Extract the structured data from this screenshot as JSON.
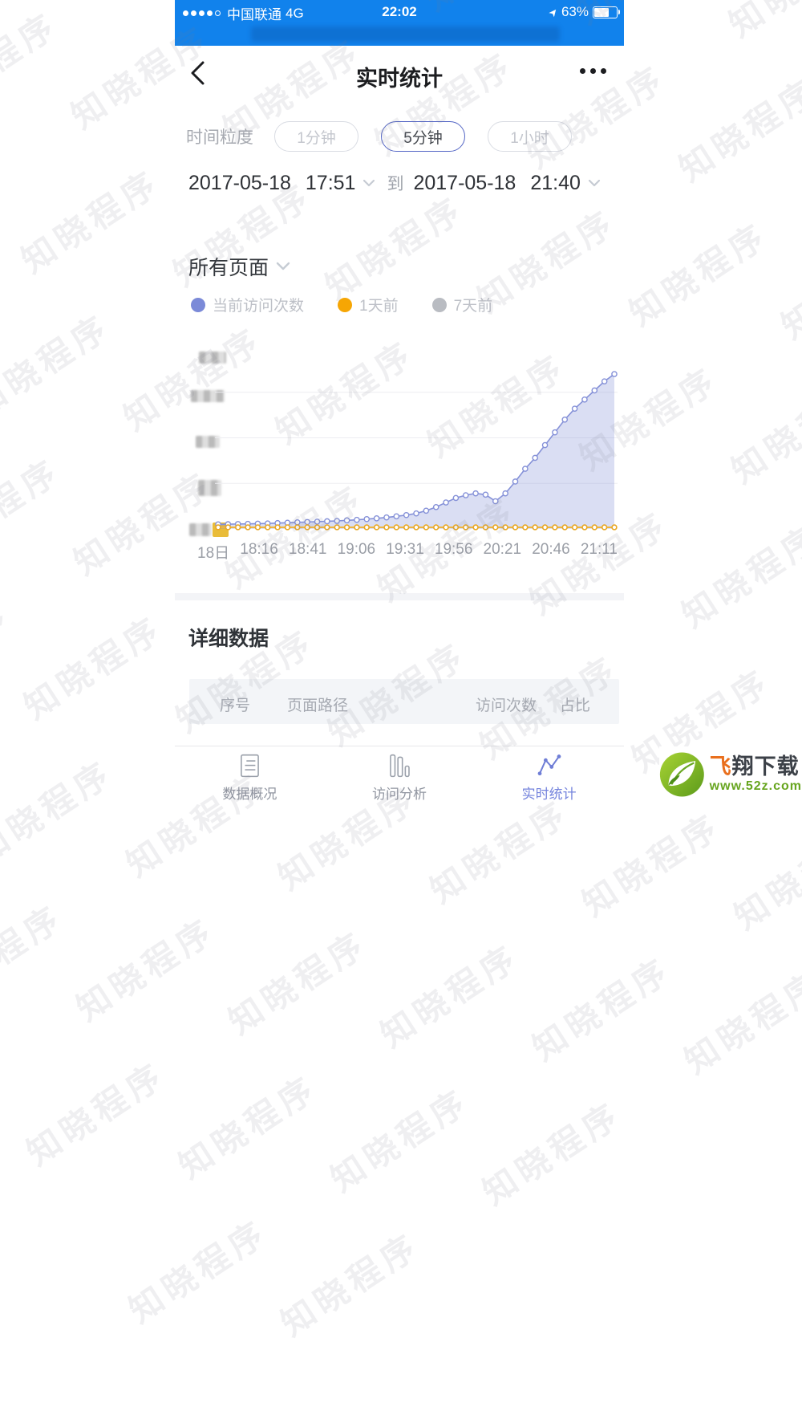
{
  "status_bar": {
    "carrier": "中国联通",
    "network": "4G",
    "time": "22:02",
    "battery_percent": "63%"
  },
  "nav": {
    "title": "实时统计"
  },
  "granularity": {
    "label": "时间粒度",
    "options": [
      {
        "label": "1分钟",
        "selected": false
      },
      {
        "label": "5分钟",
        "selected": true
      },
      {
        "label": "1小时",
        "selected": false
      }
    ]
  },
  "date_range": {
    "start_date": "2017-05-18",
    "start_time": "17:51",
    "to_label": "到",
    "end_date": "2017-05-18",
    "end_time": "21:40"
  },
  "page_filter": {
    "label": "所有页面"
  },
  "legend": [
    {
      "label": "当前访问次数",
      "color": "#7b8ad8"
    },
    {
      "label": "1天前",
      "color": "#f6a604"
    },
    {
      "label": "7天前",
      "color": "#b9bcc2"
    }
  ],
  "chart_data": {
    "type": "line",
    "title": "",
    "x_tick_labels": [
      "18日",
      "18:16",
      "18:41",
      "19:06",
      "19:31",
      "19:56",
      "20:21",
      "20:46",
      "21:11"
    ],
    "y_axis_note": "y-axis tick labels are pixelated/redacted in the screenshot",
    "ylim": [
      0,
      100
    ],
    "gridline_values": [
      25,
      50,
      75
    ],
    "grid": true,
    "legend_position": "top",
    "series": [
      {
        "name": "当前访问次数",
        "color": "#8591d8",
        "fill": "rgba(132,146,216,0.30)",
        "values": [
          2.5,
          2.6,
          2.7,
          2.8,
          2.9,
          3.0,
          3.2,
          3.4,
          3.6,
          3.8,
          4.0,
          4.2,
          4.4,
          4.7,
          5.0,
          5.4,
          5.8,
          6.3,
          6.9,
          7.6,
          8.5,
          10.0,
          12.0,
          14.5,
          17.0,
          18.5,
          19.5,
          18.8,
          15.2,
          19.5,
          26.0,
          33.0,
          39.0,
          46.0,
          53.0,
          60.0,
          66.0,
          71.0,
          76.0,
          81.0,
          85.0
        ]
      },
      {
        "name": "1天前",
        "color": "#edb53f",
        "fill": "none",
        "values": [
          0.9,
          0.9,
          0.9,
          0.9,
          0.9,
          0.9,
          0.9,
          0.9,
          0.9,
          0.9,
          0.9,
          0.9,
          0.9,
          0.9,
          0.9,
          0.9,
          0.9,
          0.9,
          0.9,
          0.9,
          0.9,
          0.9,
          0.9,
          0.9,
          0.9,
          0.9,
          0.9,
          0.9,
          0.9,
          0.9,
          0.9,
          0.9,
          0.9,
          0.9,
          0.9,
          0.9,
          0.9,
          0.9,
          0.9,
          0.9,
          0.9
        ]
      }
    ]
  },
  "detail": {
    "title": "详细数据",
    "table_headers": [
      "序号",
      "页面路径",
      "访问次数",
      "占比"
    ]
  },
  "tab_bar": [
    {
      "label": "数据概况",
      "active": false
    },
    {
      "label": "访问分析",
      "active": false
    },
    {
      "label": "实时统计",
      "active": true
    }
  ],
  "watermark": {
    "text": "知晓程序"
  },
  "site_logo": {
    "name_accent": "飞",
    "name_rest": "翔下载",
    "url": "www.52z.com"
  },
  "colors": {
    "header_blue": "#1182ec",
    "selected_pill_border": "#5466c5",
    "active_tab": "#7584dd",
    "line_current": "#8591d8",
    "line_day_ago": "#edb53f",
    "table_header_bg": "#f3f5f8"
  }
}
